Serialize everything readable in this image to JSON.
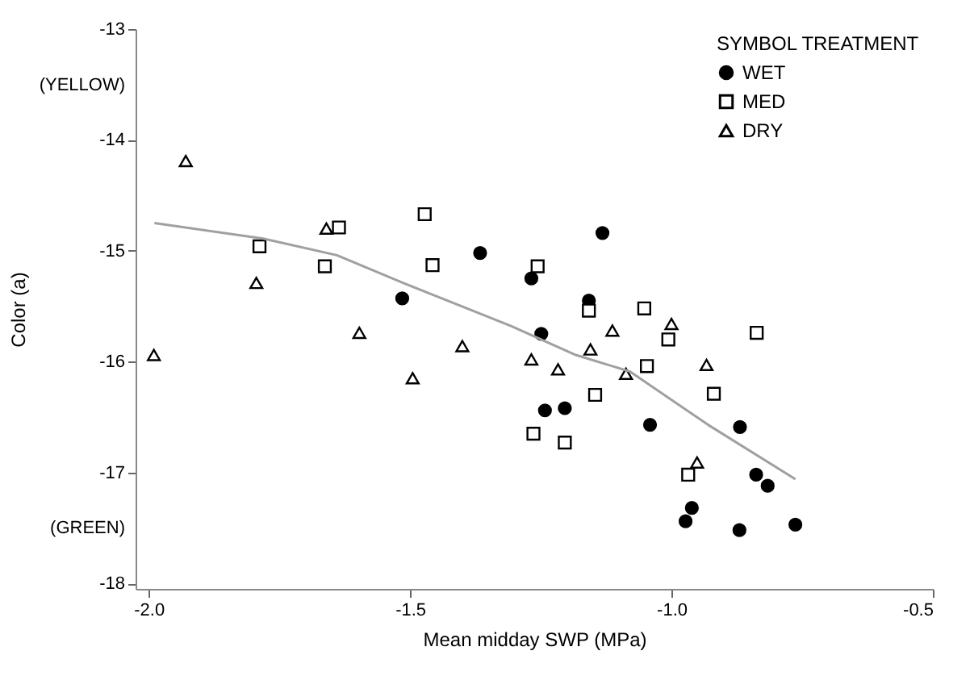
{
  "chart_data": {
    "type": "scatter",
    "xlabel": "Mean midday SWP (MPa)",
    "ylabel": "Color (a)",
    "legend_title": "SYMBOL  TREATMENT",
    "legend": "top right",
    "grid": false,
    "xlim": [
      -2.025,
      -0.5
    ],
    "ylim": [
      -18.05,
      -13
    ],
    "xticks": [
      {
        "value": -2,
        "label": "-2.0"
      },
      {
        "value": -1.5,
        "label": "-1.5"
      },
      {
        "value": -1,
        "label": "-1.0"
      },
      {
        "value": -0.5,
        "label": "-0.5"
      }
    ],
    "yticks": [
      -13,
      {
        "value": -13.5,
        "label": "(YELLOW)"
      },
      -14,
      -15,
      -16,
      -17,
      {
        "value": -17.5,
        "label": "(GREEN)"
      },
      -18
    ],
    "series": [
      {
        "name": "WET",
        "color": "#000000",
        "marker": "circle",
        "x": [
          -1.515,
          -1.366,
          -1.132,
          -1.268,
          -1.158,
          -1.249,
          -1.242,
          -1.204,
          -1.041,
          -0.869,
          -0.838,
          -0.816,
          -0.961,
          -0.973,
          -0.87,
          -0.763
        ],
        "values": [
          -15.43,
          -15.02,
          -14.84,
          -15.25,
          -15.45,
          -15.75,
          -16.44,
          -16.42,
          -16.57,
          -16.59,
          -17.02,
          -17.12,
          -17.32,
          -17.44,
          -17.52,
          -17.47
        ]
      },
      {
        "name": "MED",
        "color": "#000000",
        "marker": "square",
        "x": [
          -1.788,
          -1.636,
          -1.663,
          -1.472,
          -1.457,
          -1.256,
          -1.158,
          -1.052,
          -1.006,
          -0.837,
          -1.047,
          -0.919,
          -1.146,
          -1.264,
          -1.204,
          -0.968
        ],
        "values": [
          -14.96,
          -14.79,
          -15.14,
          -14.67,
          -15.13,
          -15.14,
          -15.54,
          -15.52,
          -15.8,
          -15.74,
          -16.04,
          -16.29,
          -16.3,
          -16.65,
          -16.73,
          -17.02
        ]
      },
      {
        "name": "DRY",
        "color": "#000000",
        "marker": "triangle",
        "x": [
          -1.929,
          -1.794,
          -1.66,
          -1.99,
          -1.597,
          -1.4,
          -1.495,
          -1.113,
          -1.0,
          -1.155,
          -1.268,
          -1.217,
          -1.087,
          -0.933,
          -0.951
        ],
        "values": [
          -14.19,
          -15.29,
          -14.8,
          -15.94,
          -15.74,
          -15.86,
          -16.15,
          -15.72,
          -15.66,
          -15.89,
          -15.98,
          -16.07,
          -16.11,
          -16.03,
          -16.91
        ]
      },
      {
        "type": "line",
        "color": "#a0a0a0",
        "marker": "none",
        "x": [
          -1.989,
          -1.781,
          -1.64,
          -1.508,
          -1.386,
          -1.306,
          -1.183,
          -1.079,
          -0.93,
          -0.763
        ],
        "values": [
          -14.75,
          -14.89,
          -15.04,
          -15.3,
          -15.53,
          -15.68,
          -15.94,
          -16.09,
          -16.57,
          -17.06
        ]
      }
    ]
  }
}
